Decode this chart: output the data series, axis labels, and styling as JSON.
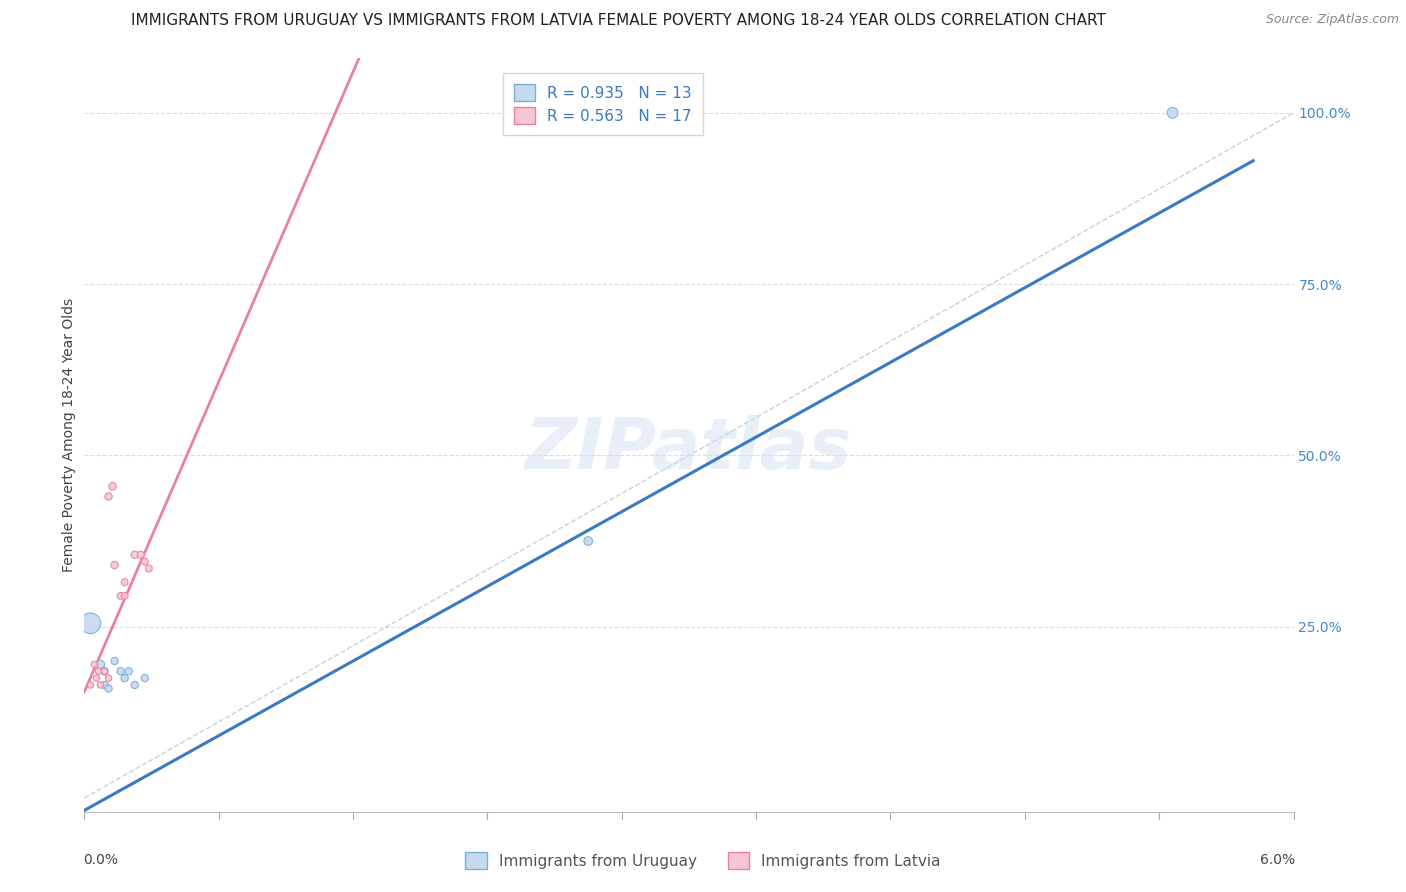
{
  "title": "IMMIGRANTS FROM URUGUAY VS IMMIGRANTS FROM LATVIA FEMALE POVERTY AMONG 18-24 YEAR OLDS CORRELATION CHART",
  "source": "Source: ZipAtlas.com",
  "ylabel": "Female Poverty Among 18-24 Year Olds",
  "ylabel_right_vals": [
    0.0,
    0.25,
    0.5,
    0.75,
    1.0
  ],
  "ylabel_right_labels": [
    "",
    "25.0%",
    "50.0%",
    "75.0%",
    "100.0%"
  ],
  "xlim": [
    0.0,
    0.06
  ],
  "ylim": [
    -0.02,
    1.08
  ],
  "watermark": "ZIPatlas",
  "uruguay_color": "#c5d9ef",
  "uruguay_edge": "#7aafd4",
  "latvia_color": "#f5c6d4",
  "latvia_edge": "#e8829e",
  "uruguay_line_color": "#3a7abf",
  "latvia_line_color": "#e8829e",
  "ref_line_color": "#d0d0d0",
  "R_uruguay": 0.935,
  "N_uruguay": 13,
  "R_latvia": 0.563,
  "N_latvia": 17,
  "uruguay_line_x0": 0.0,
  "uruguay_line_y0": -0.018,
  "uruguay_line_x1": 0.058,
  "uruguay_line_y1": 0.93,
  "latvia_line_x0": 0.0,
  "latvia_line_y0": 0.155,
  "latvia_line_x1": 0.0042,
  "latvia_line_y1": 0.44,
  "ref_line_x0": 0.0,
  "ref_line_y0": 0.0,
  "ref_line_x1": 0.06,
  "ref_line_y1": 1.0,
  "uruguay_points": [
    [
      0.0003,
      0.255,
      220
    ],
    [
      0.0008,
      0.195,
      35
    ],
    [
      0.001,
      0.185,
      30
    ],
    [
      0.001,
      0.165,
      28
    ],
    [
      0.0012,
      0.16,
      28
    ],
    [
      0.0015,
      0.2,
      28
    ],
    [
      0.0018,
      0.185,
      28
    ],
    [
      0.002,
      0.175,
      28
    ],
    [
      0.0022,
      0.185,
      28
    ],
    [
      0.0025,
      0.165,
      28
    ],
    [
      0.003,
      0.175,
      28
    ],
    [
      0.025,
      0.375,
      40
    ],
    [
      0.054,
      1.0,
      60
    ]
  ],
  "latvia_points": [
    [
      0.0003,
      0.165,
      22
    ],
    [
      0.0005,
      0.195,
      22
    ],
    [
      0.0006,
      0.175,
      22
    ],
    [
      0.0007,
      0.185,
      22
    ],
    [
      0.0008,
      0.165,
      22
    ],
    [
      0.001,
      0.185,
      22
    ],
    [
      0.0012,
      0.175,
      22
    ],
    [
      0.0015,
      0.34,
      28
    ],
    [
      0.0018,
      0.295,
      25
    ],
    [
      0.002,
      0.295,
      25
    ],
    [
      0.002,
      0.315,
      25
    ],
    [
      0.0025,
      0.355,
      28
    ],
    [
      0.0028,
      0.355,
      25
    ],
    [
      0.003,
      0.345,
      25
    ],
    [
      0.0032,
      0.335,
      25
    ],
    [
      0.0012,
      0.44,
      28
    ],
    [
      0.0014,
      0.455,
      30
    ]
  ],
  "grid_color": "#dddddd",
  "background_color": "#ffffff",
  "title_fontsize": 11,
  "axis_label_fontsize": 10,
  "tick_fontsize": 10,
  "legend_fontsize": 11,
  "watermark_fontsize": 52,
  "watermark_color": "#ccddf0",
  "watermark_alpha": 0.45
}
